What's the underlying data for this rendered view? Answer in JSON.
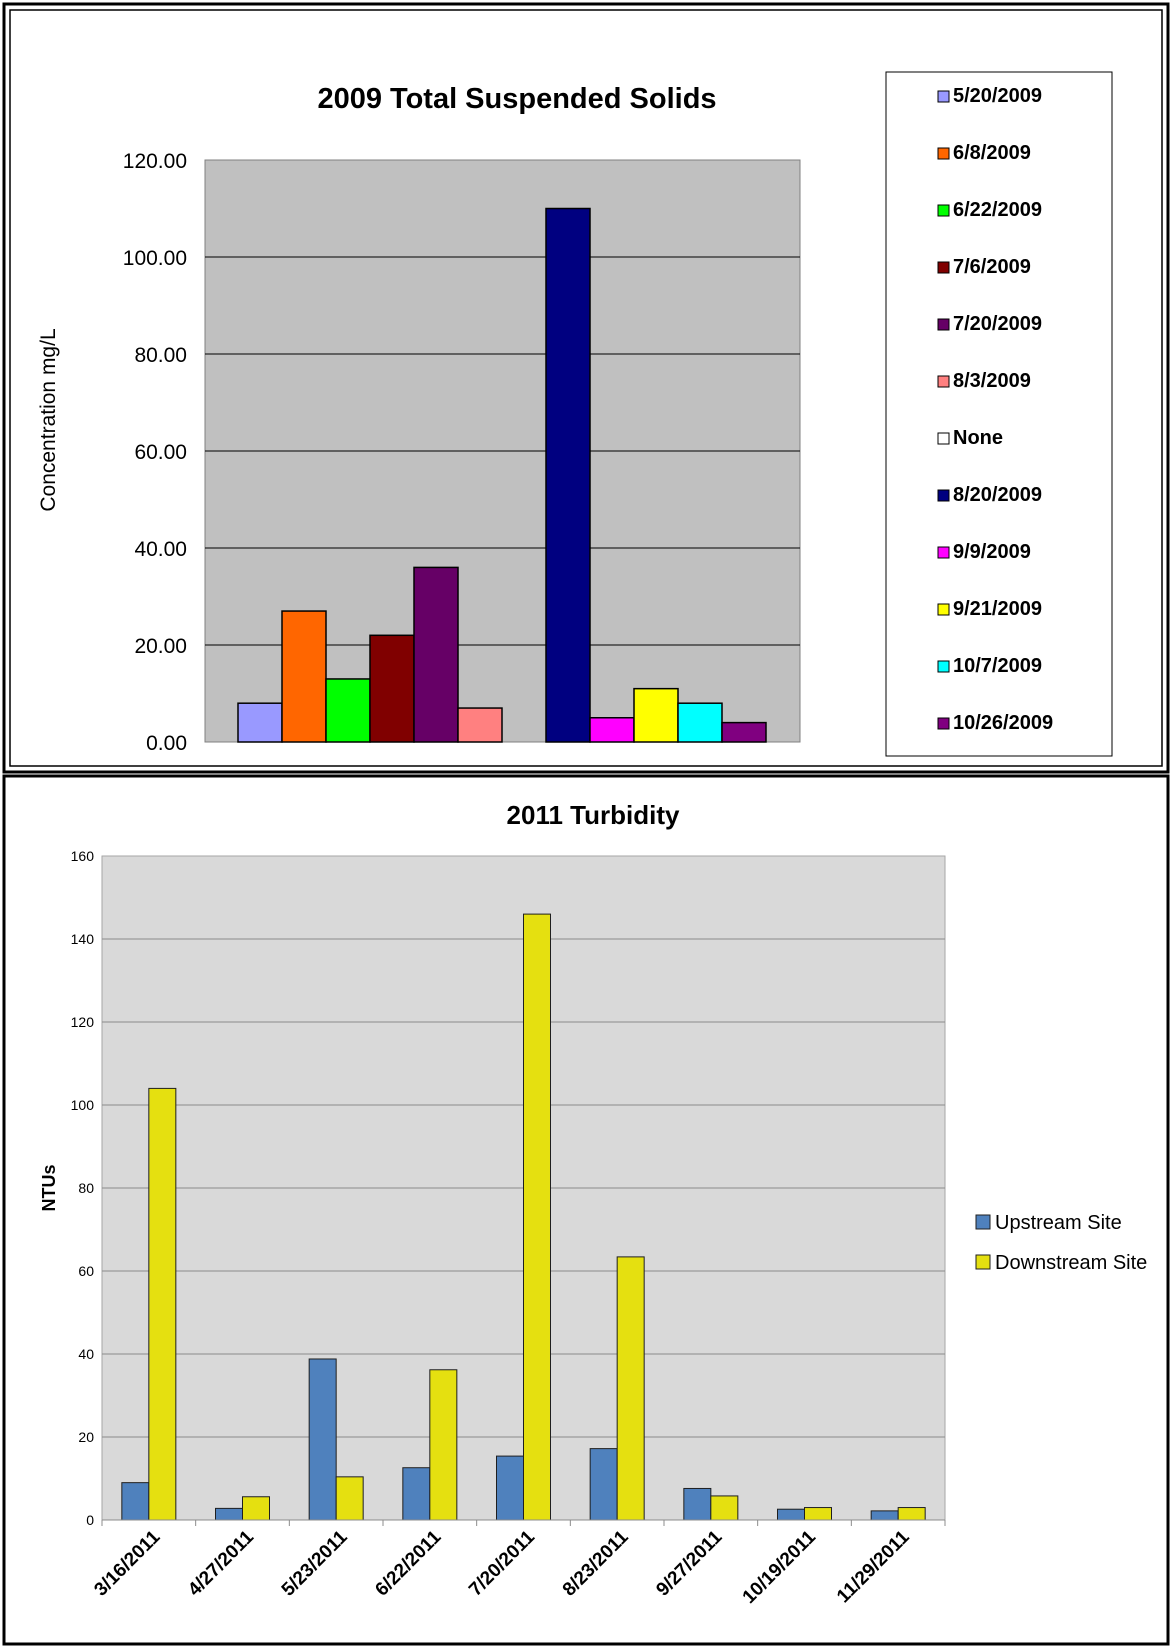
{
  "chart_data": [
    {
      "type": "bar",
      "title": "2009 Total Suspended Solids",
      "ylabel": "Concentration mg/L",
      "xlabel": "",
      "ylim": [
        0,
        120
      ],
      "yticks": [
        "0.00",
        "20.00",
        "40.00",
        "60.00",
        "80.00",
        "100.00",
        "120.00"
      ],
      "grid": true,
      "legend_position": "right",
      "series": [
        {
          "name": "5/20/2009",
          "value": 8,
          "color": "#9999ff"
        },
        {
          "name": "6/8/2009",
          "value": 27,
          "color": "#ff6600"
        },
        {
          "name": "6/22/2009",
          "value": 13,
          "color": "#00ff00"
        },
        {
          "name": "7/6/2009",
          "value": 22,
          "color": "#800000"
        },
        {
          "name": "7/20/2009",
          "value": 36,
          "color": "#660066"
        },
        {
          "name": "8/3/2009",
          "value": 7,
          "color": "#ff8080"
        },
        {
          "name": "None",
          "value": 0,
          "color": "#ffffff"
        },
        {
          "name": "8/20/2009",
          "value": 110,
          "color": "#000080"
        },
        {
          "name": "9/9/2009",
          "value": 5,
          "color": "#ff00ff"
        },
        {
          "name": "9/21/2009",
          "value": 11,
          "color": "#ffff00"
        },
        {
          "name": "10/7/2009",
          "value": 8,
          "color": "#00ffff"
        },
        {
          "name": "10/26/2009",
          "value": 4,
          "color": "#800080"
        }
      ]
    },
    {
      "type": "bar",
      "title": "2011 Turbidity",
      "ylabel": "NTUs",
      "xlabel": "",
      "ylim": [
        0,
        160
      ],
      "yticks": [
        "0",
        "20",
        "40",
        "60",
        "80",
        "100",
        "120",
        "140",
        "160"
      ],
      "grid": true,
      "legend_position": "right",
      "categories": [
        "3/16/2011",
        "4/27/2011",
        "5/23/2011",
        "6/22/2011",
        "7/20/2011",
        "8/23/2011",
        "9/27/2011",
        "10/19/2011",
        "11/29/2011"
      ],
      "series": [
        {
          "name": "Upstream Site",
          "color": "#4f81bd",
          "values": [
            9,
            2.8,
            38.8,
            12.6,
            15.4,
            17.2,
            7.6,
            2.6,
            2.2
          ]
        },
        {
          "name": "Downstream Site",
          "color": "#e5e010",
          "values": [
            104,
            5.6,
            10.4,
            36.2,
            146,
            63.4,
            5.8,
            3,
            3
          ]
        }
      ]
    }
  ]
}
